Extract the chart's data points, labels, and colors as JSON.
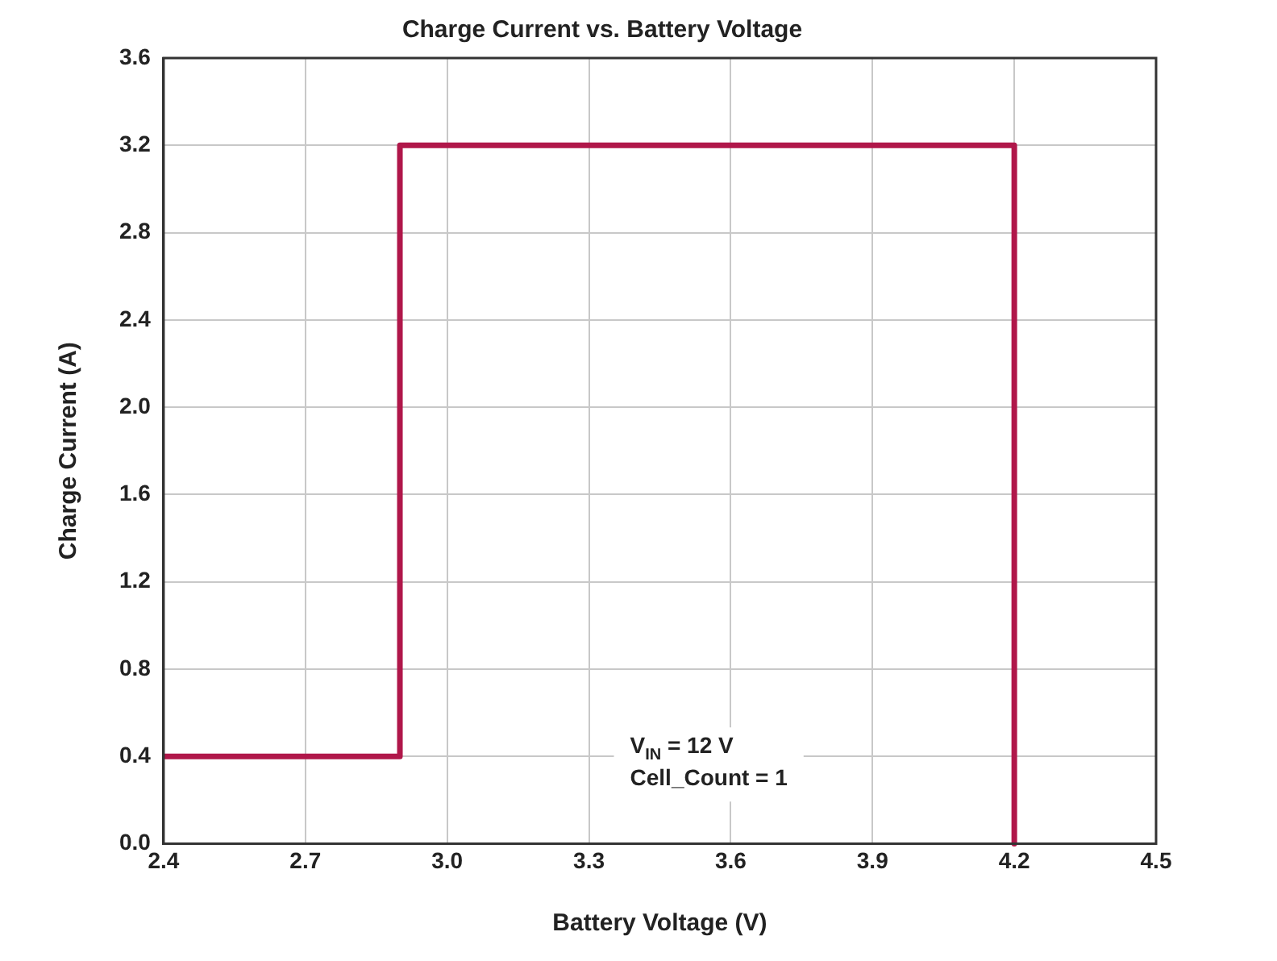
{
  "chart_data": {
    "type": "line",
    "title": "Charge Current vs. Battery Voltage",
    "xlabel": "Battery Voltage (V)",
    "ylabel": "Charge Current (A)",
    "x": [
      2.4,
      2.9,
      2.9,
      4.2,
      4.2
    ],
    "series": [
      {
        "color": "#b0174a",
        "values": [
          0.4,
          0.4,
          3.2,
          3.2,
          0
        ]
      }
    ],
    "xlim": [
      2.4,
      4.5
    ],
    "xticks": [
      2.4,
      2.7,
      {
        "value": 3,
        "label": "3.0"
      },
      3.3,
      3.6,
      3.9,
      4.2,
      4.5
    ],
    "ylim": [
      0,
      3.6
    ],
    "yticks": [
      {
        "value": 0,
        "label": "0.0"
      },
      0.4,
      0.8,
      1.2,
      1.6,
      {
        "value": 2,
        "label": "2.0"
      },
      2.4,
      2.8,
      3.2,
      3.6
    ],
    "grid": true,
    "legend": false,
    "marker": "none",
    "line_style": "solid",
    "annotations": [
      "V$_{IN}$ = 12 V",
      "Cell_Count = 1"
    ]
  }
}
